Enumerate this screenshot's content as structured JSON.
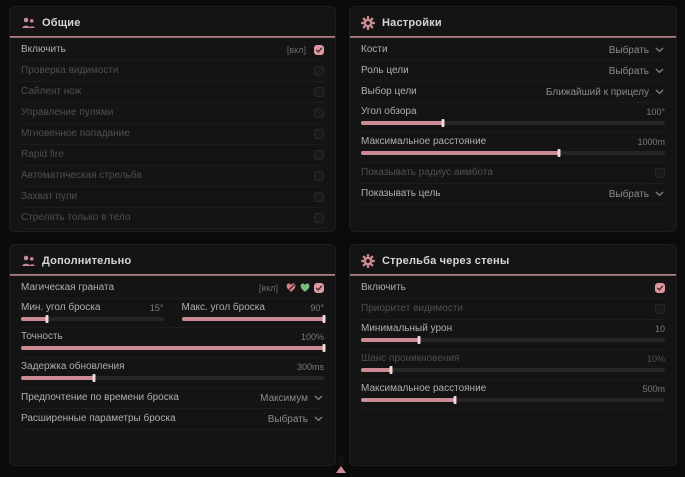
{
  "colors": {
    "accent_pink": "#dc99a1",
    "slider_fill": "#cb8b93",
    "header_line": "#a8767c",
    "panel_bg": "#151414",
    "page_bg": "#0b0b0b",
    "green_status": "#7bbf7f"
  },
  "footer": {
    "indicator": "up-arrow-indicator"
  },
  "panels": [
    {
      "id": "general",
      "title": "Общие",
      "icon": "users-icon",
      "rows": [
        {
          "type": "checkbox",
          "label": "Включить",
          "suffix": "[вкл]",
          "checked": true,
          "disabled": false
        },
        {
          "type": "checkbox",
          "label": "Проверка видимости",
          "checked": false,
          "disabled": true
        },
        {
          "type": "checkbox",
          "label": "Сайлент нож",
          "checked": false,
          "disabled": true
        },
        {
          "type": "checkbox",
          "label": "Управление пулями",
          "checked": false,
          "disabled": true
        },
        {
          "type": "checkbox",
          "label": "Мгновенное попадание",
          "checked": false,
          "disabled": true
        },
        {
          "type": "checkbox",
          "label": "Rapid fire",
          "checked": false,
          "disabled": true
        },
        {
          "type": "checkbox",
          "label": "Автоматическая стрельба",
          "checked": false,
          "disabled": true
        },
        {
          "type": "checkbox",
          "label": "Захват пули",
          "checked": false,
          "disabled": true
        },
        {
          "type": "checkbox",
          "label": "Стрелять только в тело",
          "checked": false,
          "disabled": true
        }
      ]
    },
    {
      "id": "settings",
      "title": "Настройки",
      "icon": "gear-icon",
      "rows": [
        {
          "type": "select",
          "label": "Кости",
          "value": "Выбрать",
          "disabled": false
        },
        {
          "type": "select",
          "label": "Роль цели",
          "value": "Выбрать",
          "disabled": false
        },
        {
          "type": "select",
          "label": "Выбор цели",
          "value": "Ближайший к прицелу",
          "disabled": false
        },
        {
          "type": "slider",
          "label": "Угол обзора",
          "value": "100°",
          "fill": 27,
          "disabled": false
        },
        {
          "type": "slider",
          "label": "Максимальное расстояние",
          "value": "1000m",
          "fill": 65,
          "disabled": false
        },
        {
          "type": "checkbox",
          "label": "Показывать радиус аимбота",
          "checked": false,
          "disabled": true
        },
        {
          "type": "select",
          "label": "Показывать цель",
          "value": "Выбрать",
          "disabled": false
        }
      ]
    },
    {
      "id": "additional",
      "title": "Дополнительно",
      "icon": "users-icon",
      "rows": [
        {
          "type": "checkbox",
          "label": "Магическая граната",
          "suffix": "[вкл]",
          "icons": [
            "broken-heart-icon",
            "green-heart-icon"
          ],
          "checked": true,
          "disabled": false
        },
        {
          "type": "slider-pair",
          "sliders": [
            {
              "label": "Мин. угол броска",
              "value": "15°",
              "fill": 18
            },
            {
              "label": "Макс. угол броска",
              "value": "90°",
              "fill": 100
            }
          ]
        },
        {
          "type": "slider",
          "label": "Точность",
          "value": "100%",
          "fill": 100,
          "disabled": false
        },
        {
          "type": "slider",
          "label": "Задержка обновления",
          "value": "300ms",
          "fill": 24,
          "disabled": false
        },
        {
          "type": "select",
          "label": "Предпочтение по времени броска",
          "value": "Максимум",
          "disabled": false
        },
        {
          "type": "select",
          "label": "Расширенные параметры броска",
          "value": "Выбрать",
          "disabled": false
        }
      ]
    },
    {
      "id": "wallbang",
      "title": "Стрельба через стены",
      "icon": "gear-icon",
      "rows": [
        {
          "type": "checkbox",
          "label": "Включить",
          "checked": true,
          "disabled": false
        },
        {
          "type": "checkbox",
          "label": "Приоритет видимости",
          "checked": false,
          "disabled": true
        },
        {
          "type": "slider",
          "label": "Минимальный урон",
          "value": "10",
          "fill": 19,
          "disabled": false
        },
        {
          "type": "slider",
          "label": "Шанс проникновения",
          "value": "10%",
          "fill": 10,
          "disabled": true
        },
        {
          "type": "slider",
          "label": "Максимальное расстояние",
          "value": "500m",
          "fill": 31,
          "disabled": false
        }
      ]
    }
  ]
}
